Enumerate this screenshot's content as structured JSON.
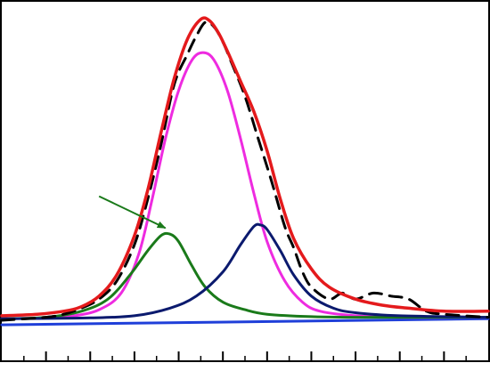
{
  "chart_data": {
    "type": "line",
    "title": "",
    "xlabel": "",
    "ylabel": "",
    "xlim": [
      0,
      110
    ],
    "ylim": [
      0,
      1.0
    ],
    "grid": false,
    "x_ticks": [
      10,
      20,
      30,
      40,
      50,
      60,
      70,
      80,
      90,
      100
    ],
    "x_minor_ticks": [
      5,
      15,
      25,
      35,
      45,
      55,
      65,
      75,
      85,
      95,
      105
    ],
    "series": [
      {
        "role": "measured",
        "style": "dashed",
        "color": "#000000",
        "points": [
          [
            0,
            0.0
          ],
          [
            10,
            0.01
          ],
          [
            14,
            0.02
          ],
          [
            18,
            0.04
          ],
          [
            22,
            0.07
          ],
          [
            26,
            0.13
          ],
          [
            30,
            0.25
          ],
          [
            33,
            0.4
          ],
          [
            36,
            0.58
          ],
          [
            39,
            0.78
          ],
          [
            42,
            0.88
          ],
          [
            44,
            0.94
          ],
          [
            46,
            0.985
          ],
          [
            48,
            0.97
          ],
          [
            50,
            0.92
          ],
          [
            52,
            0.85
          ],
          [
            55,
            0.74
          ],
          [
            58,
            0.6
          ],
          [
            61,
            0.46
          ],
          [
            64,
            0.31
          ],
          [
            66,
            0.24
          ],
          [
            68,
            0.16
          ],
          [
            70,
            0.11
          ],
          [
            74,
            0.07
          ],
          [
            77,
            0.09
          ],
          [
            80,
            0.07
          ],
          [
            84,
            0.09
          ],
          [
            88,
            0.08
          ],
          [
            92,
            0.07
          ],
          [
            96,
            0.03
          ],
          [
            100,
            0.02
          ],
          [
            110,
            0.01
          ]
        ]
      },
      {
        "role": "envelope",
        "style": "solid",
        "color": "#e41a1c",
        "points": [
          [
            0,
            0.015
          ],
          [
            8,
            0.02
          ],
          [
            14,
            0.03
          ],
          [
            18,
            0.045
          ],
          [
            22,
            0.08
          ],
          [
            26,
            0.15
          ],
          [
            30,
            0.28
          ],
          [
            33,
            0.43
          ],
          [
            36,
            0.62
          ],
          [
            39,
            0.8
          ],
          [
            42,
            0.93
          ],
          [
            45,
            0.995
          ],
          [
            47,
            0.99
          ],
          [
            49,
            0.95
          ],
          [
            51,
            0.89
          ],
          [
            54,
            0.79
          ],
          [
            57,
            0.69
          ],
          [
            60,
            0.56
          ],
          [
            63,
            0.4
          ],
          [
            66,
            0.27
          ],
          [
            70,
            0.17
          ],
          [
            74,
            0.11
          ],
          [
            80,
            0.07
          ],
          [
            86,
            0.05
          ],
          [
            92,
            0.04
          ],
          [
            100,
            0.03
          ],
          [
            110,
            0.03
          ]
        ]
      },
      {
        "role": "component",
        "style": "solid",
        "color": "#ee2be0",
        "points": [
          [
            0,
            0.005
          ],
          [
            10,
            0.008
          ],
          [
            16,
            0.014
          ],
          [
            22,
            0.035
          ],
          [
            27,
            0.09
          ],
          [
            31,
            0.22
          ],
          [
            34,
            0.4
          ],
          [
            37,
            0.6
          ],
          [
            40,
            0.76
          ],
          [
            43,
            0.86
          ],
          [
            45.5,
            0.885
          ],
          [
            48,
            0.86
          ],
          [
            51,
            0.76
          ],
          [
            54,
            0.6
          ],
          [
            57,
            0.42
          ],
          [
            60,
            0.26
          ],
          [
            64,
            0.13
          ],
          [
            68,
            0.06
          ],
          [
            72,
            0.03
          ],
          [
            80,
            0.015
          ],
          [
            90,
            0.01
          ],
          [
            110,
            0.01
          ]
        ]
      },
      {
        "role": "component",
        "style": "solid",
        "color": "#1a7a1a",
        "points": [
          [
            0,
            0.005
          ],
          [
            10,
            0.01
          ],
          [
            18,
            0.03
          ],
          [
            24,
            0.07
          ],
          [
            29,
            0.15
          ],
          [
            33,
            0.23
          ],
          [
            36,
            0.28
          ],
          [
            38,
            0.285
          ],
          [
            40,
            0.26
          ],
          [
            43,
            0.18
          ],
          [
            46,
            0.11
          ],
          [
            50,
            0.06
          ],
          [
            55,
            0.035
          ],
          [
            60,
            0.02
          ],
          [
            70,
            0.012
          ],
          [
            80,
            0.01
          ],
          [
            110,
            0.01
          ]
        ]
      },
      {
        "role": "component",
        "style": "solid",
        "color": "#0b1a6e",
        "points": [
          [
            0,
            0.005
          ],
          [
            20,
            0.008
          ],
          [
            30,
            0.015
          ],
          [
            38,
            0.04
          ],
          [
            44,
            0.08
          ],
          [
            50,
            0.16
          ],
          [
            54,
            0.25
          ],
          [
            57,
            0.31
          ],
          [
            58.5,
            0.315
          ],
          [
            60,
            0.3
          ],
          [
            63,
            0.23
          ],
          [
            66,
            0.15
          ],
          [
            70,
            0.08
          ],
          [
            75,
            0.04
          ],
          [
            80,
            0.025
          ],
          [
            90,
            0.015
          ],
          [
            110,
            0.01
          ]
        ]
      },
      {
        "role": "baseline",
        "style": "solid",
        "color": "#1f3fd9",
        "points": [
          [
            0,
            -0.015
          ],
          [
            110,
            0.005
          ]
        ]
      }
    ],
    "annotations": [
      {
        "type": "arrow",
        "color": "#1a7a1a",
        "from": [
          22,
          0.41
        ],
        "to": [
          37,
          0.305
        ]
      }
    ]
  }
}
